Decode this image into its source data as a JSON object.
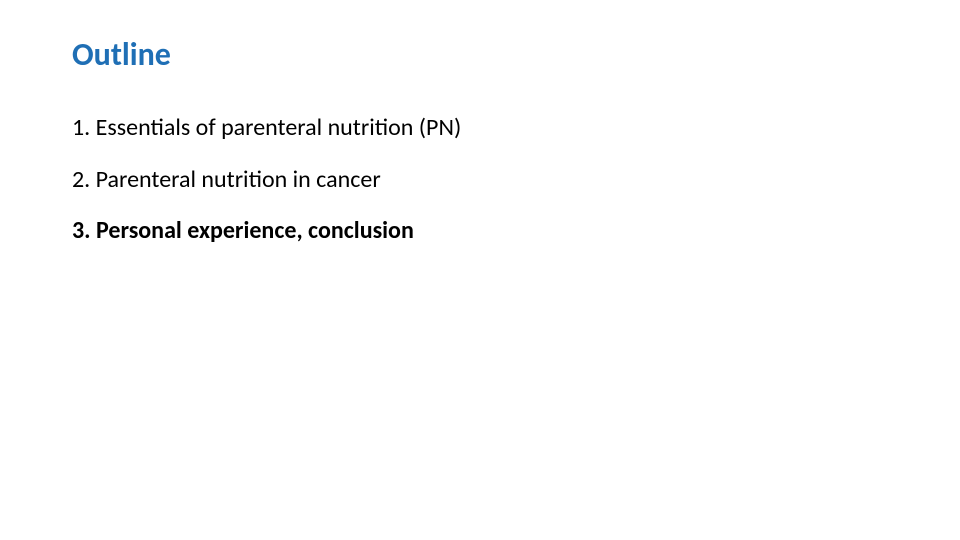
{
  "slide": {
    "title": "Outline",
    "title_color": "#1f6fb5",
    "background_color": "#ffffff",
    "items": [
      {
        "text": "1. Essentials of parenteral nutrition (PN)",
        "bold": false
      },
      {
        "text": "2. Parenteral nutrition in cancer",
        "bold": false
      },
      {
        "text": "3. Personal experience, conclusion",
        "bold": true
      }
    ],
    "body_fontsize": 24,
    "title_fontsize": 32,
    "body_text_color": "#000000"
  }
}
